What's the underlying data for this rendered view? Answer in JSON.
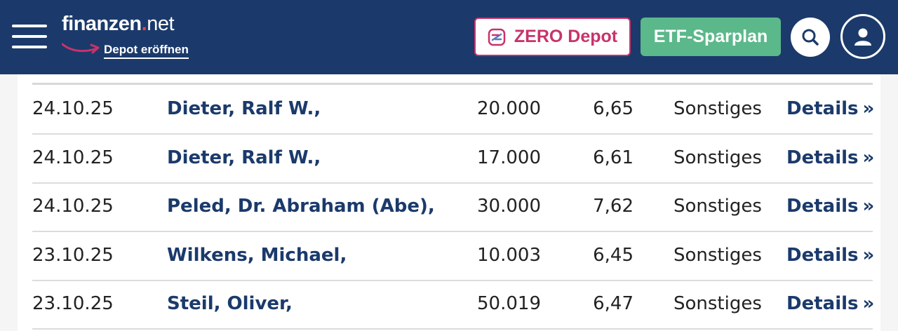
{
  "header": {
    "logo": {
      "brand": "finanzen",
      "dot": ".",
      "tld": "net"
    },
    "depot_link": "Depot eröffnen",
    "zero_button": "ZERO Depot",
    "etf_button": "ETF-Sparplan",
    "search_icon": "search-icon",
    "account_icon": "user-icon",
    "menu_icon": "hamburger-menu-icon"
  },
  "colors": {
    "header_bg": "#1b3a6b",
    "zero_accent": "#c8336a",
    "etf_green": "#5bb88a",
    "logo_dot": "#e0474c"
  },
  "rows": [
    {
      "date": "24.10.25",
      "name": "Dieter, Ralf W.,",
      "qty": "20.000",
      "price": "6,65",
      "type": "Sonstiges",
      "details": "Details"
    },
    {
      "date": "24.10.25",
      "name": "Dieter, Ralf W.,",
      "qty": "17.000",
      "price": "6,61",
      "type": "Sonstiges",
      "details": "Details"
    },
    {
      "date": "24.10.25",
      "name": "Peled, Dr. Abraham (Abe),",
      "qty": "30.000",
      "price": "7,62",
      "type": "Sonstiges",
      "details": "Details"
    },
    {
      "date": "23.10.25",
      "name": "Wilkens, Michael,",
      "qty": "10.003",
      "price": "6,45",
      "type": "Sonstiges",
      "details": "Details"
    },
    {
      "date": "23.10.25",
      "name": "Steil, Oliver,",
      "qty": "50.019",
      "price": "6,47",
      "type": "Sonstiges",
      "details": "Details"
    }
  ]
}
